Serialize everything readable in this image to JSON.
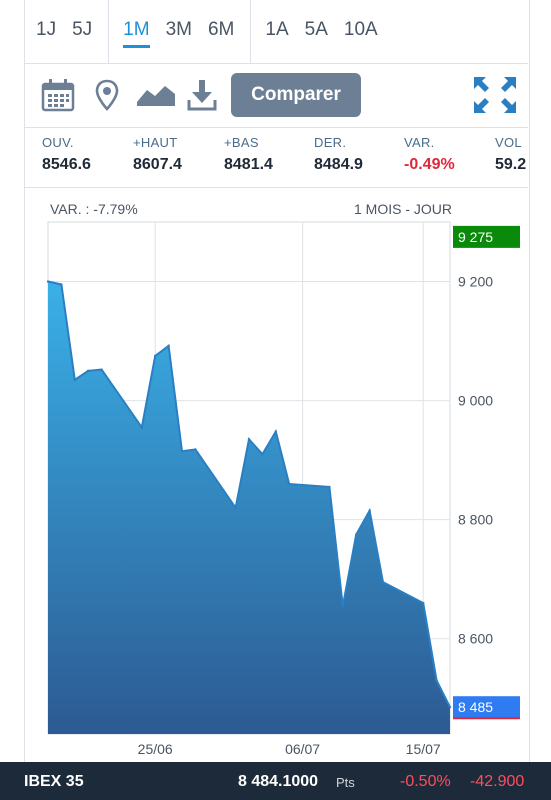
{
  "periods": {
    "group1": [
      "1J",
      "5J"
    ],
    "group2": [
      "1M",
      "3M",
      "6M"
    ],
    "group3": [
      "1A",
      "5A",
      "10A"
    ],
    "active": "1M"
  },
  "toolbar": {
    "compare_label": "Comparer",
    "icons": [
      "calendar-icon",
      "location-pin-icon",
      "area-chart-icon",
      "download-icon",
      "expand-icon"
    ]
  },
  "stats": [
    {
      "label": "OUV.",
      "value": "8546.6"
    },
    {
      "label": "+HAUT",
      "value": "8607.4"
    },
    {
      "label": "+BAS",
      "value": "8481.4"
    },
    {
      "label": "DER.",
      "value": "8484.9"
    },
    {
      "label": "VAR.",
      "value": "-0.49%"
    },
    {
      "label": "VOL",
      "value": "59.2"
    }
  ],
  "chart_header": {
    "variation": "VAR. : -7.79%",
    "range": "1 MOIS - JOUR"
  },
  "chart_data": {
    "type": "area",
    "x": [
      "2024-06-17",
      "2024-06-18",
      "2024-06-19",
      "2024-06-20",
      "2024-06-21",
      "2024-06-24",
      "2024-06-25",
      "2024-06-26",
      "2024-06-27",
      "2024-06-28",
      "2024-07-01",
      "2024-07-02",
      "2024-07-03",
      "2024-07-04",
      "2024-07-05",
      "2024-07-08",
      "2024-07-09",
      "2024-07-10",
      "2024-07-11",
      "2024-07-12",
      "2024-07-15",
      "2024-07-16",
      "2024-07-17"
    ],
    "values": [
      9200,
      9195,
      9035,
      9050,
      9052,
      8955,
      9075,
      9092,
      8915,
      8918,
      8820,
      8935,
      8910,
      8948,
      8860,
      8855,
      8655,
      8775,
      8815,
      8695,
      8660,
      8530,
      8485
    ],
    "xticks": [
      {
        "date": "2024-06-25",
        "label": "25/06"
      },
      {
        "date": "2024-07-06",
        "label": "06/07"
      },
      {
        "date": "2024-07-15",
        "label": "15/07"
      }
    ],
    "yticks": [
      8600,
      8800,
      9000,
      9200
    ],
    "ytick_labels": [
      "8 600",
      "8 800",
      "9 000",
      "9 200"
    ],
    "ylim": [
      8440,
      9300
    ],
    "high_marker": {
      "value": 9275,
      "label": "9 275",
      "color": "#0a8a0a"
    },
    "last_marker": {
      "value": 8485,
      "label": "8 485",
      "color": "#2f7bf2"
    },
    "line_color": "#2a7fc3",
    "fill_top": "#3ab0e8",
    "fill_bottom": "#2d5a92",
    "grid": true
  },
  "ticker": {
    "name": "IBEX 35",
    "price": "8 484.1000",
    "unit": "Pts",
    "pct": "-0.50%",
    "change": "-42.900"
  }
}
